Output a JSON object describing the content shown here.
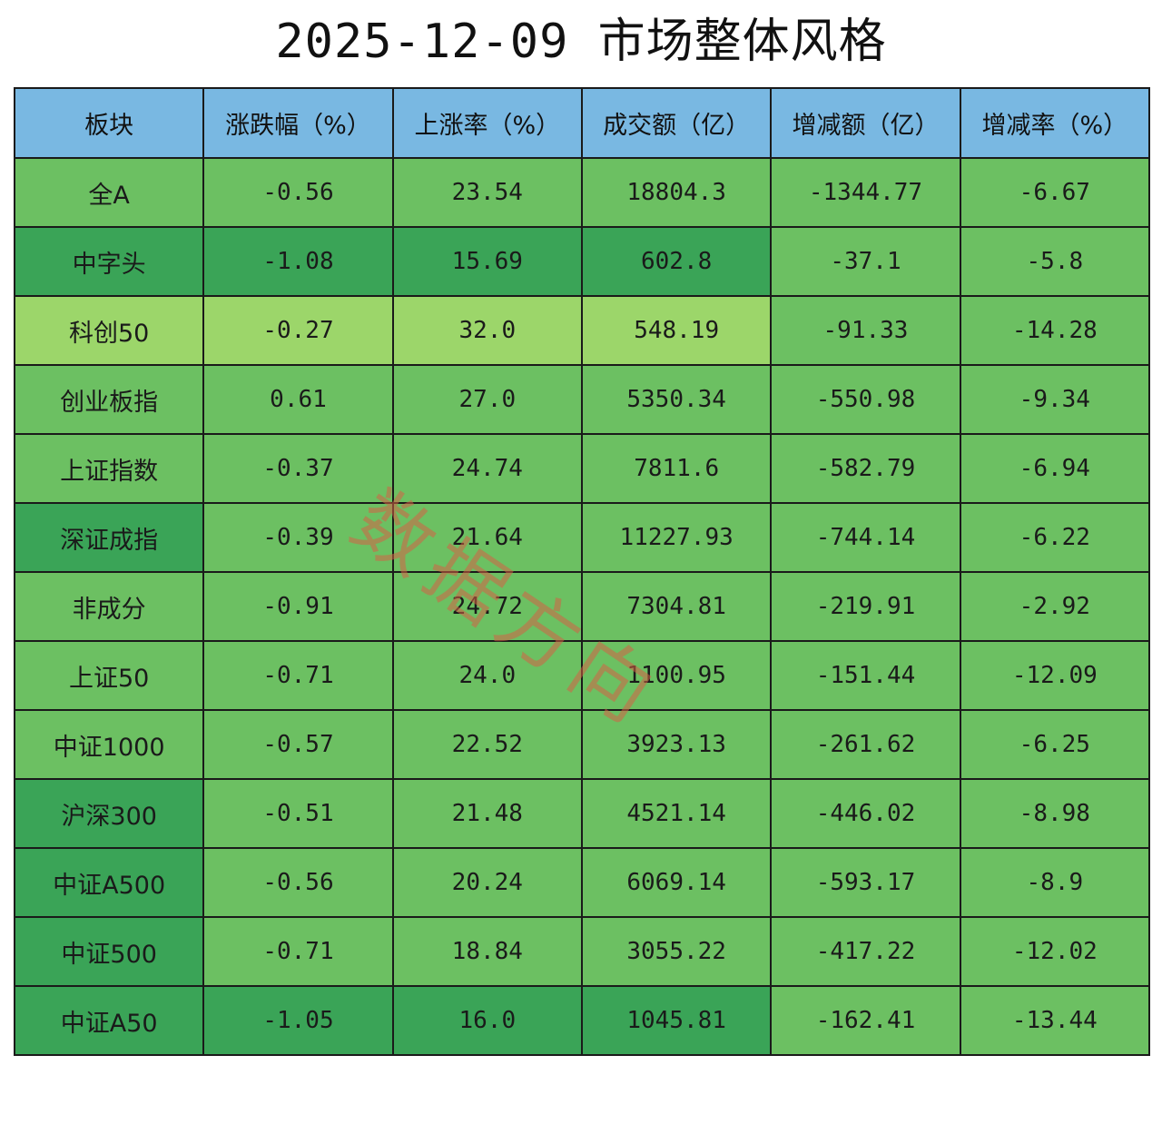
{
  "title": "2025-12-09 市场整体风格",
  "watermark": "数据方向",
  "colors": {
    "header_bg": "#79b8e2",
    "light": "#9cd66a",
    "mid": "#6cc062",
    "dark": "#3aa457"
  },
  "chart_data": {
    "type": "table",
    "title": "2025-12-09 市场整体风格",
    "columns": [
      "板块",
      "涨跌幅（%）",
      "上涨率（%）",
      "成交额（亿）",
      "增减额（亿）",
      "增减率（%）"
    ],
    "rows": [
      {
        "name": "全A",
        "change_pct": "-0.56",
        "rise_rate": "23.54",
        "turnover": "18804.3",
        "delta_amount": "-1344.77",
        "delta_rate": "-6.67"
      },
      {
        "name": "中字头",
        "change_pct": "-1.08",
        "rise_rate": "15.69",
        "turnover": "602.8",
        "delta_amount": "-37.1",
        "delta_rate": "-5.8"
      },
      {
        "name": "科创50",
        "change_pct": "-0.27",
        "rise_rate": "32.0",
        "turnover": "548.19",
        "delta_amount": "-91.33",
        "delta_rate": "-14.28"
      },
      {
        "name": "创业板指",
        "change_pct": "0.61",
        "rise_rate": "27.0",
        "turnover": "5350.34",
        "delta_amount": "-550.98",
        "delta_rate": "-9.34"
      },
      {
        "name": "上证指数",
        "change_pct": "-0.37",
        "rise_rate": "24.74",
        "turnover": "7811.6",
        "delta_amount": "-582.79",
        "delta_rate": "-6.94"
      },
      {
        "name": "深证成指",
        "change_pct": "-0.39",
        "rise_rate": "21.64",
        "turnover": "11227.93",
        "delta_amount": "-744.14",
        "delta_rate": "-6.22"
      },
      {
        "name": "非成分",
        "change_pct": "-0.91",
        "rise_rate": "24.72",
        "turnover": "7304.81",
        "delta_amount": "-219.91",
        "delta_rate": "-2.92"
      },
      {
        "name": "上证50",
        "change_pct": "-0.71",
        "rise_rate": "24.0",
        "turnover": "1100.95",
        "delta_amount": "-151.44",
        "delta_rate": "-12.09"
      },
      {
        "name": "中证1000",
        "change_pct": "-0.57",
        "rise_rate": "22.52",
        "turnover": "3923.13",
        "delta_amount": "-261.62",
        "delta_rate": "-6.25"
      },
      {
        "name": "沪深300",
        "change_pct": "-0.51",
        "rise_rate": "21.48",
        "turnover": "4521.14",
        "delta_amount": "-446.02",
        "delta_rate": "-8.98"
      },
      {
        "name": "中证A500",
        "change_pct": "-0.56",
        "rise_rate": "20.24",
        "turnover": "6069.14",
        "delta_amount": "-593.17",
        "delta_rate": "-8.9"
      },
      {
        "name": "中证500",
        "change_pct": "-0.71",
        "rise_rate": "18.84",
        "turnover": "3055.22",
        "delta_amount": "-417.22",
        "delta_rate": "-12.02"
      },
      {
        "name": "中证A50",
        "change_pct": "-1.05",
        "rise_rate": "16.0",
        "turnover": "1045.81",
        "delta_amount": "-162.41",
        "delta_rate": "-13.44"
      }
    ],
    "cell_shades": [
      [
        "mid",
        "mid",
        "mid",
        "mid",
        "mid",
        "mid"
      ],
      [
        "dark",
        "dark",
        "dark",
        "dark",
        "mid",
        "mid"
      ],
      [
        "light",
        "light",
        "light",
        "light",
        "mid",
        "mid"
      ],
      [
        "mid",
        "mid",
        "mid",
        "mid",
        "mid",
        "mid"
      ],
      [
        "mid",
        "mid",
        "mid",
        "mid",
        "mid",
        "mid"
      ],
      [
        "dark",
        "mid",
        "mid",
        "mid",
        "mid",
        "mid"
      ],
      [
        "mid",
        "mid",
        "mid",
        "mid",
        "mid",
        "mid"
      ],
      [
        "mid",
        "mid",
        "mid",
        "mid",
        "mid",
        "mid"
      ],
      [
        "mid",
        "mid",
        "mid",
        "mid",
        "mid",
        "mid"
      ],
      [
        "dark",
        "mid",
        "mid",
        "mid",
        "mid",
        "mid"
      ],
      [
        "dark",
        "mid",
        "mid",
        "mid",
        "mid",
        "mid"
      ],
      [
        "dark",
        "mid",
        "mid",
        "mid",
        "mid",
        "mid"
      ],
      [
        "dark",
        "dark",
        "dark",
        "dark",
        "mid",
        "mid"
      ]
    ]
  }
}
